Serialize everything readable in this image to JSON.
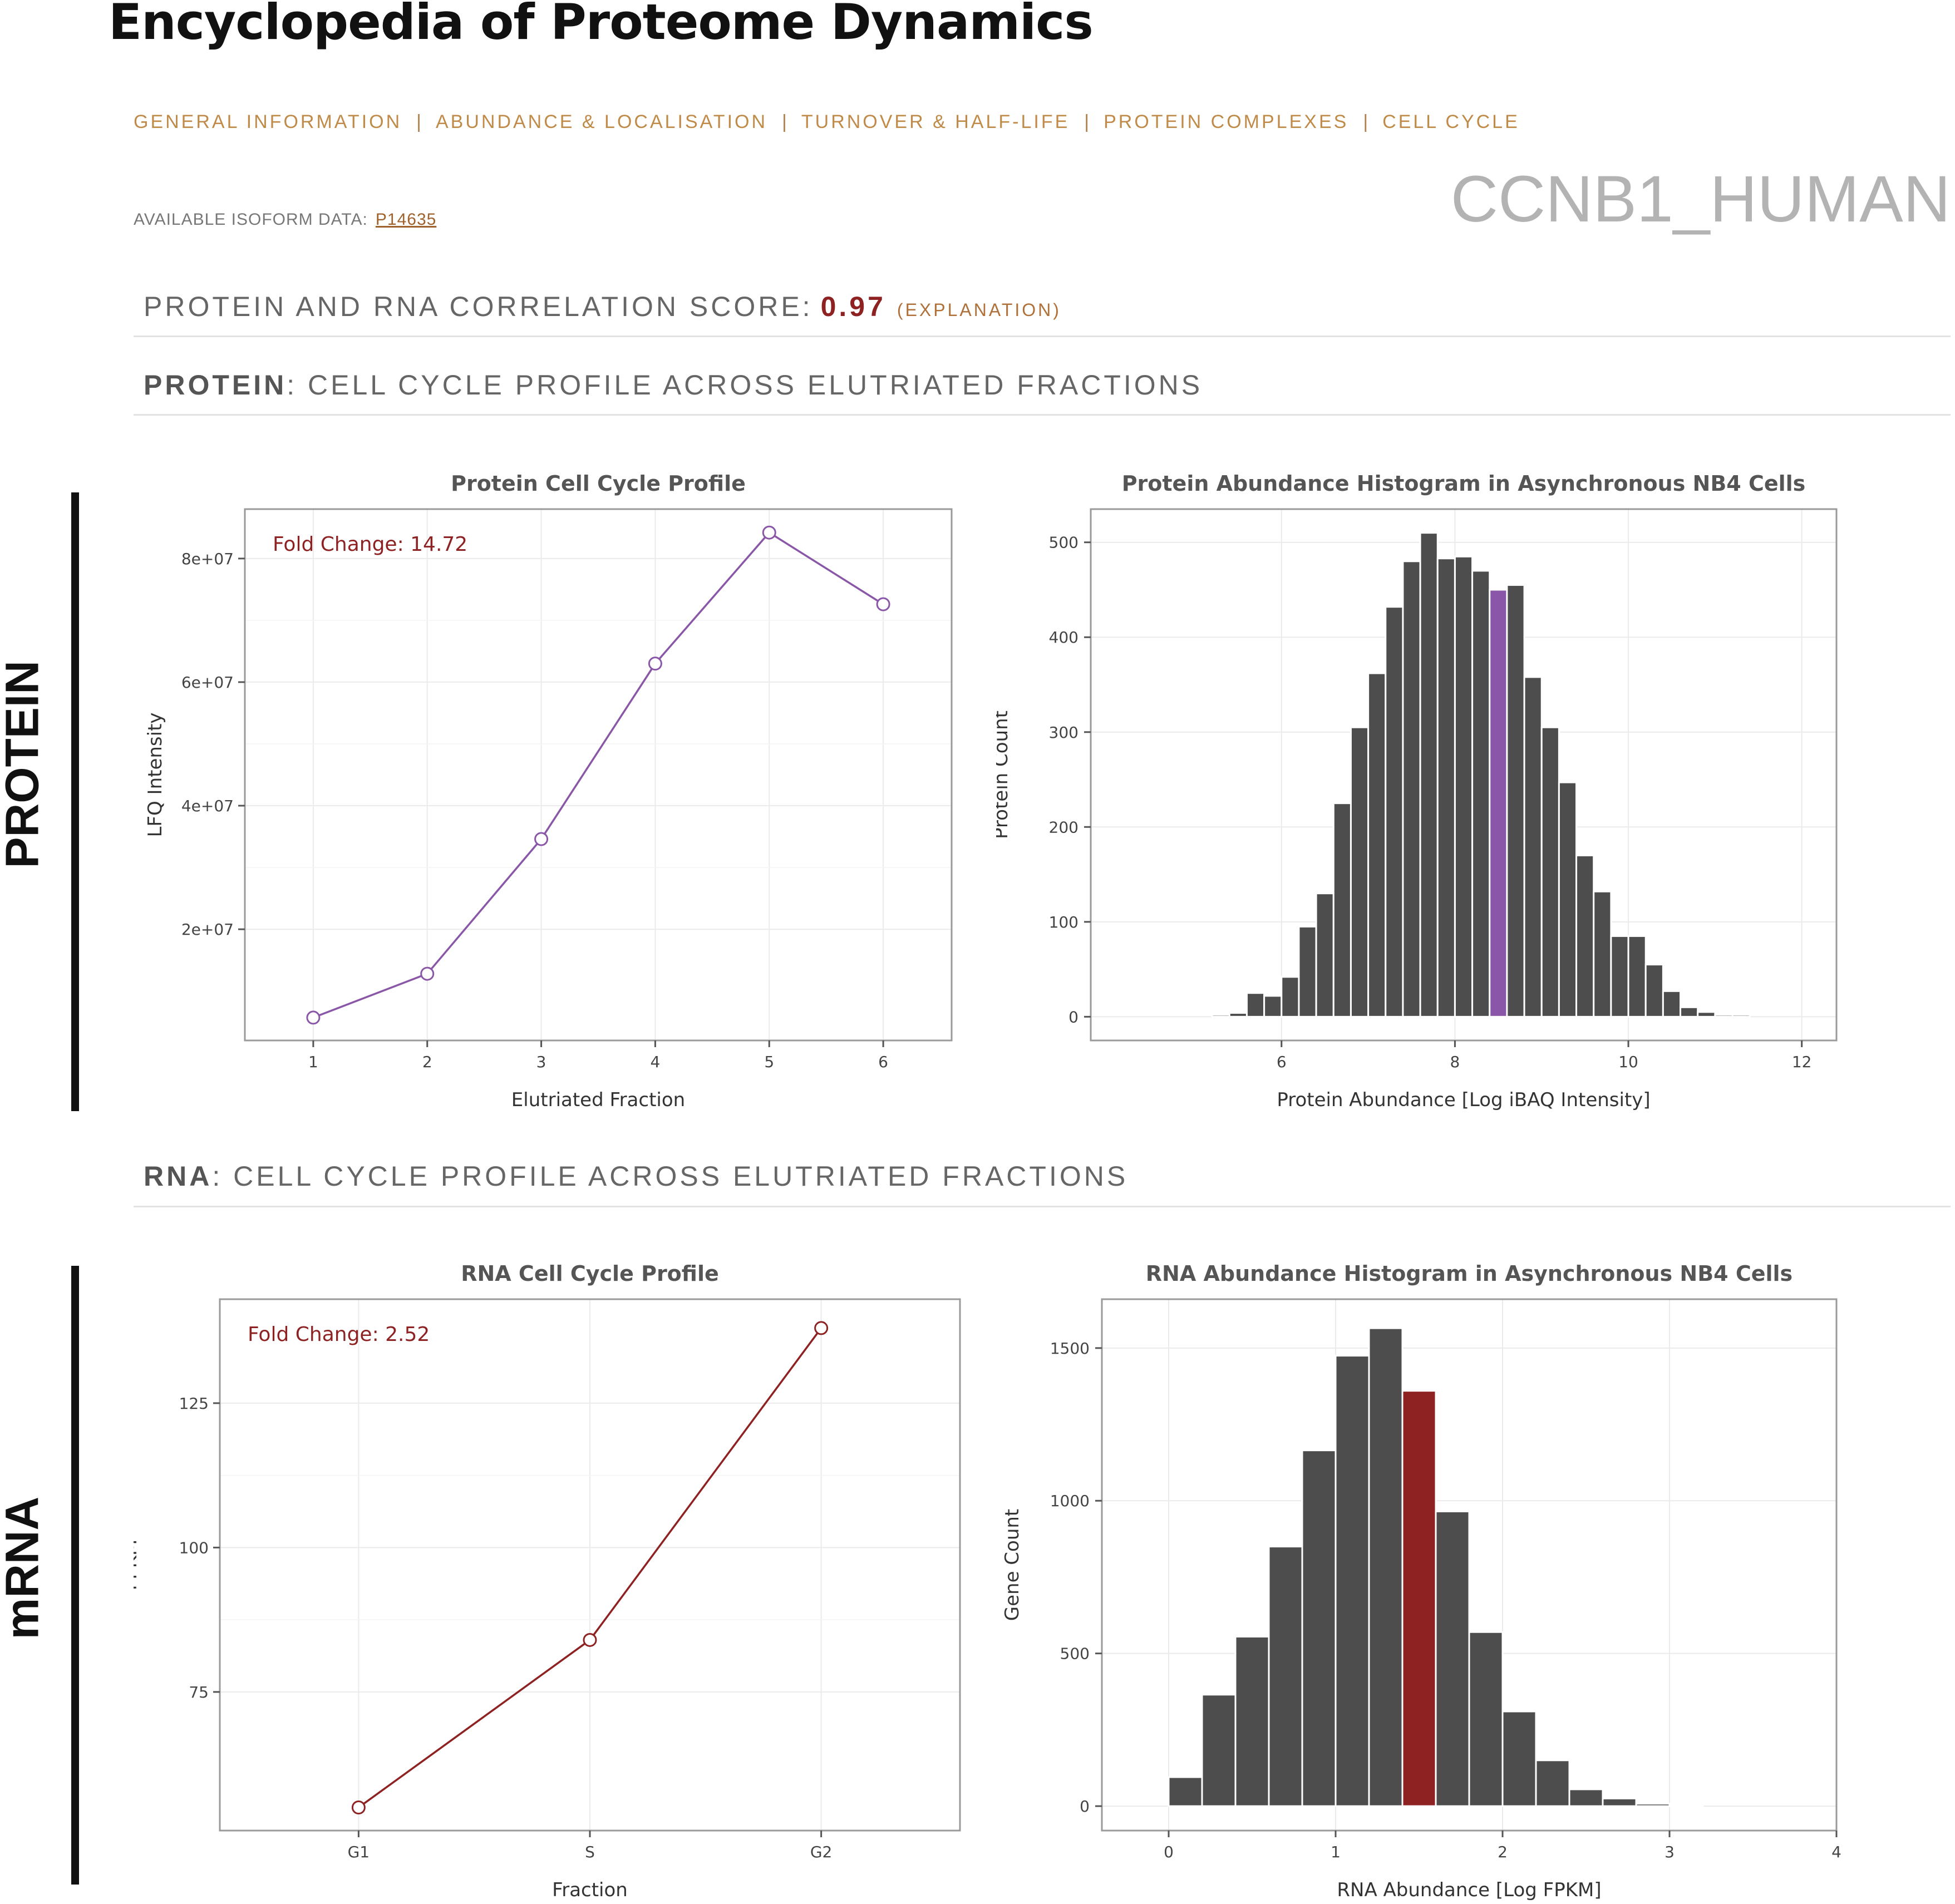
{
  "app": {
    "title": "Encyclopedia of Proteome Dynamics"
  },
  "nav": {
    "items": [
      {
        "label": "GENERAL INFORMATION"
      },
      {
        "label": "ABUNDANCE & LOCALISATION"
      },
      {
        "label": "TURNOVER & HALF-LIFE"
      },
      {
        "label": "PROTEIN COMPLEXES"
      },
      {
        "label": "CELL CYCLE"
      }
    ],
    "separator": "|"
  },
  "isoform": {
    "label": "AVAILABLE ISOFORM DATA:",
    "link": "P14635"
  },
  "protein_name": "CCNB1_HUMAN",
  "correlation": {
    "label": "PROTEIN AND RNA CORRELATION SCORE:",
    "score": "0.97",
    "explanation": "(EXPLANATION)"
  },
  "protein_section": {
    "prefix": "PROTEIN",
    "title": ": CELL CYCLE PROFILE ACROSS ELUTRIATED FRACTIONS",
    "side_label": "PROTEIN"
  },
  "rna_section": {
    "prefix": "RNA",
    "title": ": CELL CYCLE PROFILE ACROSS ELUTRIATED FRACTIONS",
    "side_label": "mRNA"
  },
  "colors": {
    "protein_accent": "#8a57a8",
    "rna_accent": "#8e2222",
    "bar": "#4d4d4d",
    "nav": "#c08a48"
  },
  "chart_data": [
    {
      "id": "protein-profile",
      "type": "line",
      "title": "Protein Cell Cycle Profile",
      "xlabel": "Elutriated Fraction",
      "ylabel": "LFQ Intensity",
      "annotation": "Fold Change: 14.72",
      "x": [
        1,
        2,
        3,
        4,
        5,
        6
      ],
      "x_ticks": [
        "1",
        "2",
        "3",
        "4",
        "5",
        "6"
      ],
      "y": [
        5700000,
        12800000,
        34600000,
        63000000,
        84200000,
        72600000
      ],
      "y_ticks": [
        20000000,
        40000000,
        60000000,
        80000000
      ],
      "y_tick_labels": [
        "2e+07",
        "4e+07",
        "6e+07",
        "8e+07"
      ],
      "xlim": [
        0.4,
        6.6
      ],
      "ylim": [
        2000000,
        88000000
      ],
      "color": "#8a57a8",
      "grid": true
    },
    {
      "id": "protein-histogram",
      "type": "bar",
      "title": "Protein Abundance Histogram in Asynchronous NB4 Cells",
      "xlabel": "Protein Abundance [Log iBAQ Intensity]",
      "ylabel": "Protein Count",
      "bin_start": 5.2,
      "bin_width": 0.2,
      "values": [
        2,
        4,
        25,
        22,
        42,
        95,
        130,
        225,
        305,
        362,
        432,
        480,
        510,
        483,
        485,
        470,
        450,
        455,
        358,
        305,
        247,
        170,
        132,
        85,
        85,
        55,
        27,
        10,
        5,
        2,
        2
      ],
      "highlight_index": 16,
      "highlight_color": "#8a57a8",
      "x_ticks": [
        6,
        8,
        10,
        12
      ],
      "y_ticks": [
        0,
        100,
        200,
        300,
        400,
        500
      ],
      "xlim": [
        3.8,
        12.4
      ],
      "ylim": [
        -25,
        535
      ],
      "grid": true
    },
    {
      "id": "rna-profile",
      "type": "line",
      "title": "RNA Cell Cycle Profile",
      "xlabel": "Fraction",
      "ylabel": "FPKM",
      "annotation": "Fold Change: 2.52",
      "categories": [
        "G1",
        "S",
        "G2"
      ],
      "y": [
        55,
        84,
        138
      ],
      "y_ticks": [
        75,
        100,
        125
      ],
      "xlim": [
        0.4,
        3.6
      ],
      "ylim": [
        51,
        143
      ],
      "color": "#8e2222",
      "grid": true
    },
    {
      "id": "rna-histogram",
      "type": "bar",
      "title": "RNA Abundance Histogram in Asynchronous NB4 Cells",
      "xlabel": "RNA Abundance [Log FPKM]",
      "ylabel": "Gene Count",
      "bin_start": 0.0,
      "bin_width": 0.2,
      "values": [
        95,
        365,
        555,
        850,
        1165,
        1475,
        1565,
        1360,
        965,
        570,
        310,
        150,
        55,
        25,
        8,
        2
      ],
      "highlight_index": 7,
      "highlight_color": "#8e2222",
      "x_ticks": [
        0,
        1,
        2,
        3,
        4
      ],
      "y_ticks": [
        0,
        500,
        1000,
        1500
      ],
      "xlim": [
        -0.4,
        4.0
      ],
      "ylim": [
        -80,
        1660
      ],
      "grid": true
    }
  ]
}
